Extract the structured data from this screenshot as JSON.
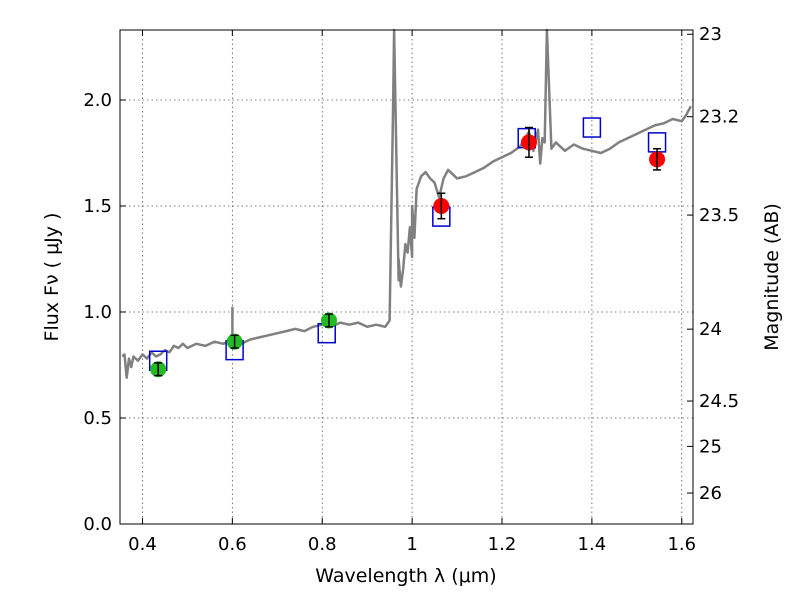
{
  "chart_data": {
    "type": "scatter",
    "title": "",
    "xlabel": "Wavelength  λ (μm)",
    "ylabel": "Flux  Fν  ( μJy )",
    "ylabel_right": "Magnitude (AB)",
    "xlim": [
      0.35,
      1.625
    ],
    "ylim": [
      0,
      2.33
    ],
    "grid": true,
    "x_ticks": [
      0.4,
      0.6,
      0.8,
      1.0,
      1.2,
      1.4,
      1.6
    ],
    "x_tick_labels": [
      "0.4",
      "0.6",
      "0.8",
      "1",
      "1.2",
      "1.4",
      "1.6"
    ],
    "y_ticks": [
      0.0,
      0.5,
      1.0,
      1.5,
      2.0
    ],
    "y_tick_labels": [
      "0.0",
      "0.5",
      "1.0",
      "1.5",
      "2.0"
    ],
    "right_axis_ticks": [
      {
        "label": "23",
        "flux": 2.31
      },
      {
        "label": "23.2",
        "flux": 1.921
      },
      {
        "label": "23.5",
        "flux": 1.457
      },
      {
        "label": "24",
        "flux": 0.919
      },
      {
        "label": "24.5",
        "flux": 0.58
      },
      {
        "label": "25",
        "flux": 0.366
      },
      {
        "label": "26",
        "flux": 0.146
      }
    ],
    "series": [
      {
        "marker": "line",
        "color": "#808080",
        "x": [
          0.355,
          0.36,
          0.365,
          0.37,
          0.375,
          0.38,
          0.39,
          0.4,
          0.41,
          0.42,
          0.43,
          0.44,
          0.45,
          0.46,
          0.47,
          0.48,
          0.49,
          0.5,
          0.52,
          0.54,
          0.56,
          0.58,
          0.6,
          0.6,
          0.6,
          0.6,
          0.61,
          0.62,
          0.64,
          0.66,
          0.68,
          0.7,
          0.72,
          0.74,
          0.76,
          0.78,
          0.8,
          0.82,
          0.84,
          0.86,
          0.88,
          0.9,
          0.92,
          0.94,
          0.95,
          0.958,
          0.96,
          0.96,
          0.97,
          0.97,
          0.975,
          0.98,
          0.985,
          0.99,
          0.995,
          1.0,
          1.0,
          1.005,
          1.01,
          1.02,
          1.03,
          1.04,
          1.05,
          1.06,
          1.07,
          1.08,
          1.09,
          1.1,
          1.12,
          1.14,
          1.16,
          1.18,
          1.2,
          1.22,
          1.24,
          1.26,
          1.27,
          1.28,
          1.285,
          1.29,
          1.295,
          1.3,
          1.3,
          1.31,
          1.32,
          1.34,
          1.36,
          1.38,
          1.4,
          1.42,
          1.44,
          1.46,
          1.48,
          1.5,
          1.52,
          1.54,
          1.56,
          1.58,
          1.6,
          1.61,
          1.62
        ],
        "y": [
          0.79,
          0.8,
          0.69,
          0.78,
          0.74,
          0.79,
          0.77,
          0.8,
          0.78,
          0.81,
          0.79,
          0.8,
          0.82,
          0.81,
          0.84,
          0.83,
          0.85,
          0.83,
          0.85,
          0.84,
          0.86,
          0.85,
          0.87,
          1.02,
          0.83,
          0.86,
          0.86,
          0.85,
          0.87,
          0.88,
          0.89,
          0.9,
          0.91,
          0.92,
          0.91,
          0.93,
          0.94,
          0.93,
          0.95,
          0.94,
          0.95,
          0.93,
          0.94,
          0.93,
          0.96,
          2.0,
          2.4,
          2.4,
          1.15,
          1.25,
          1.12,
          1.2,
          1.32,
          1.28,
          1.4,
          1.26,
          1.5,
          1.35,
          1.58,
          1.64,
          1.66,
          1.63,
          1.61,
          1.54,
          1.63,
          1.67,
          1.65,
          1.63,
          1.64,
          1.66,
          1.68,
          1.71,
          1.73,
          1.75,
          1.78,
          1.85,
          1.76,
          1.86,
          1.7,
          1.82,
          1.8,
          2.4,
          2.4,
          1.77,
          1.8,
          1.76,
          1.79,
          1.77,
          1.76,
          1.75,
          1.77,
          1.8,
          1.82,
          1.84,
          1.86,
          1.88,
          1.89,
          1.91,
          1.9,
          1.93,
          1.97
        ]
      },
      {
        "marker": "open-square",
        "color": "#0000cc",
        "x": [
          0.435,
          0.605,
          0.81,
          1.065,
          1.255,
          1.4,
          1.545
        ],
        "y": [
          0.77,
          0.82,
          0.9,
          1.45,
          1.82,
          1.87,
          1.8
        ]
      },
      {
        "marker": "filled-circle",
        "color": "#22bb22",
        "x": [
          0.435,
          0.605,
          0.815
        ],
        "y": [
          0.73,
          0.86,
          0.96
        ],
        "yerr": [
          0.03,
          0.03,
          0.03
        ]
      },
      {
        "marker": "filled-circle",
        "color": "#ff0000",
        "x": [
          1.065,
          1.26,
          1.545
        ],
        "y": [
          1.5,
          1.8,
          1.72
        ],
        "yerr": [
          0.06,
          0.07,
          0.05
        ]
      }
    ]
  }
}
